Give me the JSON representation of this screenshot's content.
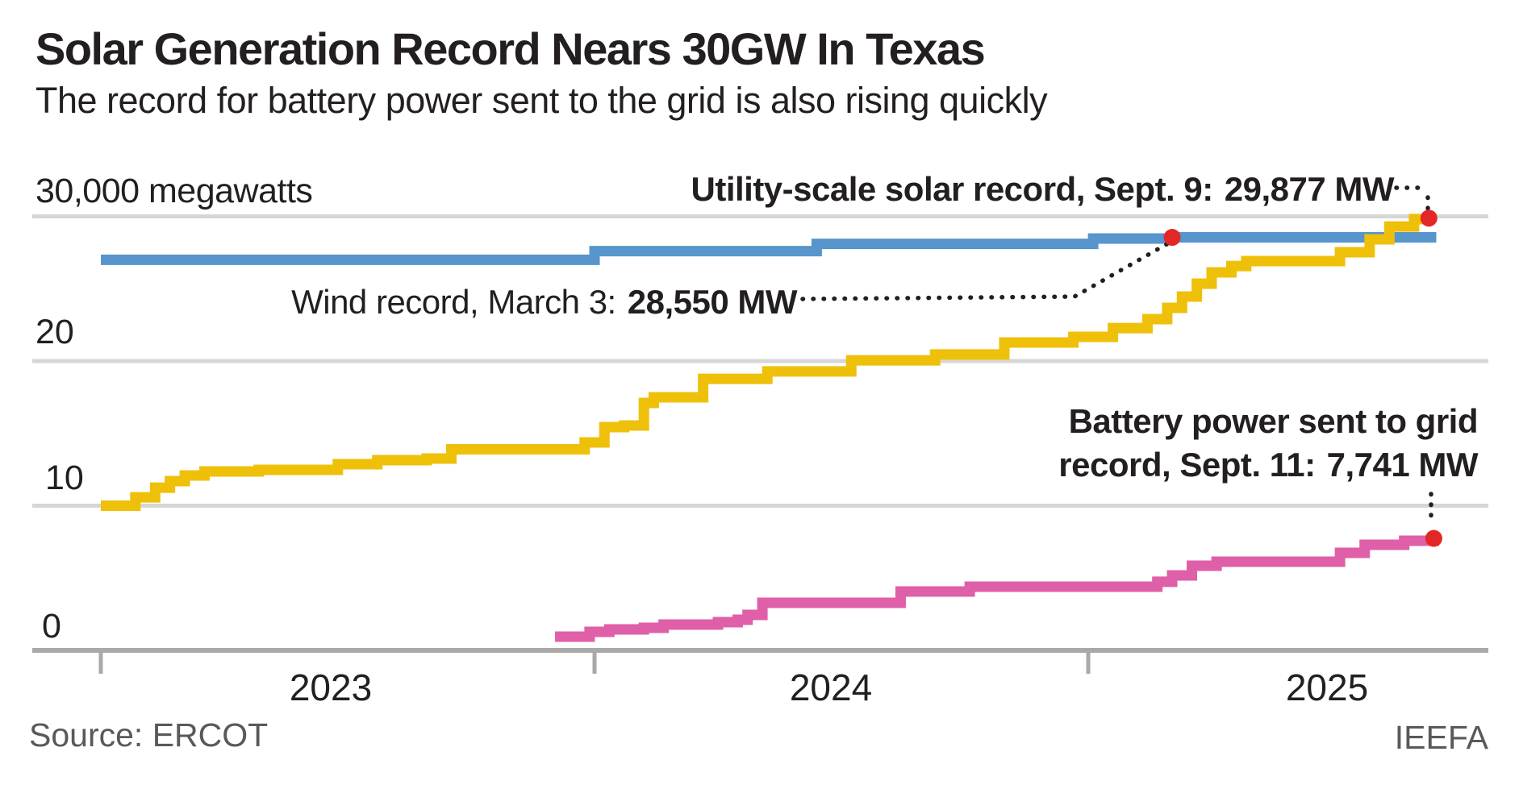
{
  "header": {
    "title": "Solar Generation Record Nears 30GW In Texas",
    "subtitle": "The record for battery power sent to the grid is also rising quickly"
  },
  "annotations": {
    "y_axis_top_label": "30,000 megawatts",
    "solar": {
      "label": "Utility-scale solar record, Sept. 9:",
      "value": "29,877 MW"
    },
    "wind": {
      "label": "Wind record, March 3:",
      "value": "28,550 MW"
    },
    "battery": {
      "line1": "Battery power sent to grid",
      "line2_label": "record, Sept. 11:",
      "value": "7,741 MW"
    }
  },
  "axis": {
    "y": [
      "20",
      "10",
      "0"
    ],
    "x": [
      "2023",
      "2024",
      "2025"
    ]
  },
  "footer": {
    "source": "Source: ERCOT",
    "credit": "IEEFA"
  },
  "colors": {
    "wind": "#5696CC",
    "solar": "#EFC009",
    "battery": "#DF5FA8",
    "marker": "#E32726",
    "gridline": "#d6d6d6",
    "axis": "#a9a9a9",
    "leader": "#231f20"
  },
  "chart_data": {
    "type": "step-line",
    "unit": "megawatts",
    "title": "Solar Generation Record Nears 30GW In Texas",
    "x_axis": {
      "tick_years": [
        2023,
        2024,
        2025
      ],
      "start": 2023.0,
      "end": 2025.72
    },
    "y_axis": {
      "top_label": "30,000 megawatts",
      "gridlines_mw": [
        30000,
        20000,
        10000
      ],
      "baseline_mw": 0,
      "ylim": [
        0,
        31000
      ]
    },
    "series": [
      {
        "name": "Wind record",
        "color_key": "wind",
        "end_year": 2025.705,
        "record": {
          "date": "March 3",
          "mw": 28550,
          "year": 2025.17
        },
        "points": [
          [
            2023.0,
            27000
          ],
          [
            2024.0,
            27600
          ],
          [
            2024.45,
            28100
          ],
          [
            2025.01,
            28470
          ],
          [
            2025.17,
            28550
          ]
        ]
      },
      {
        "name": "Utility-scale solar record",
        "color_key": "solar",
        "end_year": 2025.7,
        "record": {
          "date": "Sept. 9",
          "mw": 29877,
          "year": 2025.69
        },
        "points": [
          [
            2023.0,
            10000
          ],
          [
            2023.07,
            10580
          ],
          [
            2023.11,
            11250
          ],
          [
            2023.14,
            11700
          ],
          [
            2023.17,
            12090
          ],
          [
            2023.21,
            12370
          ],
          [
            2023.32,
            12480
          ],
          [
            2023.48,
            12870
          ],
          [
            2023.56,
            13150
          ],
          [
            2023.66,
            13260
          ],
          [
            2023.71,
            13900
          ],
          [
            2023.98,
            14370
          ],
          [
            2024.02,
            15430
          ],
          [
            2024.06,
            15540
          ],
          [
            2024.1,
            17100
          ],
          [
            2024.12,
            17490
          ],
          [
            2024.22,
            18770
          ],
          [
            2024.35,
            19280
          ],
          [
            2024.52,
            20050
          ],
          [
            2024.69,
            20450
          ],
          [
            2024.83,
            21280
          ],
          [
            2024.97,
            21670
          ],
          [
            2025.05,
            22280
          ],
          [
            2025.12,
            22900
          ],
          [
            2025.16,
            23680
          ],
          [
            2025.19,
            24460
          ],
          [
            2025.22,
            25350
          ],
          [
            2025.25,
            26130
          ],
          [
            2025.29,
            26570
          ],
          [
            2025.32,
            26910
          ],
          [
            2025.51,
            27520
          ],
          [
            2025.57,
            28410
          ],
          [
            2025.61,
            29300
          ],
          [
            2025.66,
            29810
          ],
          [
            2025.69,
            29877
          ]
        ]
      },
      {
        "name": "Battery power sent to grid record",
        "color_key": "battery",
        "end_year": 2025.705,
        "record": {
          "date": "Sept. 11",
          "mw": 7741,
          "year": 2025.7
        },
        "points": [
          [
            2023.92,
            950
          ],
          [
            2023.99,
            1280
          ],
          [
            2024.03,
            1450
          ],
          [
            2024.1,
            1560
          ],
          [
            2024.14,
            1780
          ],
          [
            2024.25,
            1950
          ],
          [
            2024.29,
            2120
          ],
          [
            2024.31,
            2450
          ],
          [
            2024.34,
            3290
          ],
          [
            2024.62,
            4070
          ],
          [
            2024.76,
            4400
          ],
          [
            2025.14,
            4740
          ],
          [
            2025.17,
            5180
          ],
          [
            2025.21,
            5850
          ],
          [
            2025.26,
            6130
          ],
          [
            2025.51,
            6740
          ],
          [
            2025.56,
            7300
          ],
          [
            2025.64,
            7580
          ],
          [
            2025.7,
            7741
          ]
        ]
      }
    ]
  }
}
